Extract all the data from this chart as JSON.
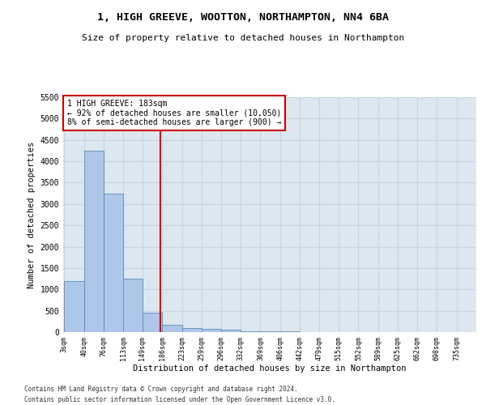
{
  "title": "1, HIGH GREEVE, WOOTTON, NORTHAMPTON, NN4 6BA",
  "subtitle": "Size of property relative to detached houses in Northampton",
  "xlabel": "Distribution of detached houses by size in Northampton",
  "ylabel": "Number of detached properties",
  "footnote1": "Contains HM Land Registry data © Crown copyright and database right 2024.",
  "footnote2": "Contains public sector information licensed under the Open Government Licence v3.0.",
  "bin_edges": [
    3,
    40,
    76,
    113,
    149,
    186,
    223,
    259,
    296,
    332,
    369,
    406,
    442,
    479,
    515,
    552,
    589,
    625,
    662,
    698,
    735
  ],
  "bar_heights": [
    1200,
    4250,
    3250,
    1250,
    450,
    175,
    100,
    75,
    50,
    25,
    25,
    10,
    5,
    5,
    5,
    5,
    0,
    0,
    0,
    0
  ],
  "bar_color": "#aec6e8",
  "bar_edgecolor": "#5b8db8",
  "grid_color": "#c8d4e0",
  "bg_color": "#dde7f0",
  "property_value": 183,
  "property_label": "1 HIGH GREEVE: 183sqm",
  "annotation_line1": "← 92% of detached houses are smaller (10,050)",
  "annotation_line2": "8% of semi-detached houses are larger (900) →",
  "vline_color": "#cc0000",
  "box_edgecolor": "#cc0000",
  "ylim": [
    0,
    5500
  ],
  "yticks": [
    0,
    500,
    1000,
    1500,
    2000,
    2500,
    3000,
    3500,
    4000,
    4500,
    5000,
    5500
  ]
}
